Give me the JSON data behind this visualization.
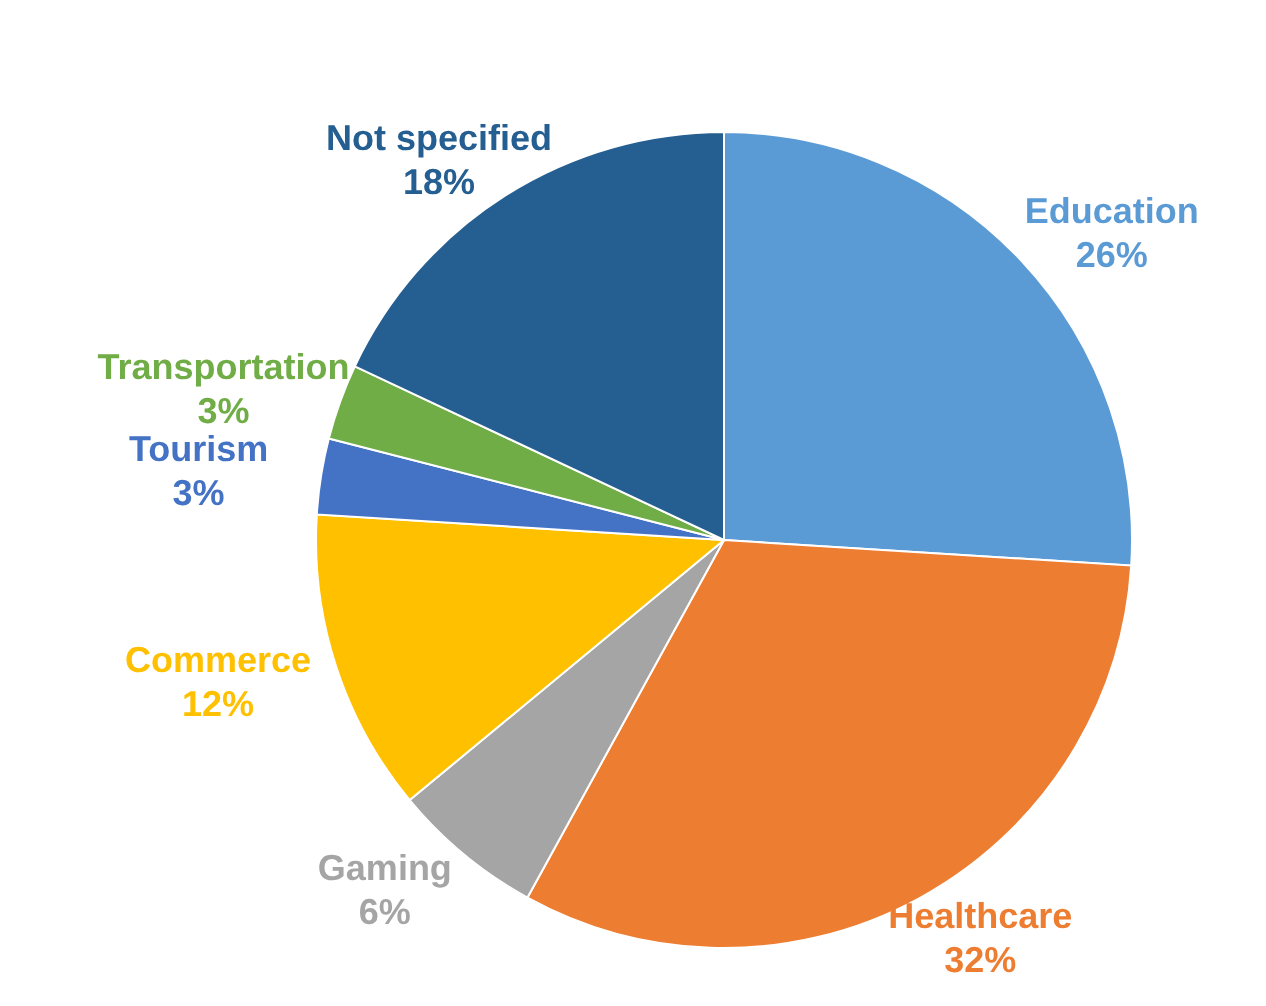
{
  "chart_data": {
    "type": "pie",
    "categories": [
      "Education",
      "Healthcare",
      "Gaming",
      "Commerce",
      "Tourism",
      "Transportation",
      "Not specified"
    ],
    "values": [
      26,
      32,
      6,
      12,
      3,
      3,
      18
    ],
    "colors": [
      "#5b9bd5",
      "#ed7d31",
      "#a5a5a5",
      "#ffc000",
      "#4472c4",
      "#70ad47",
      "#255e91"
    ],
    "value_labels": [
      "26%",
      "32%",
      "6%",
      "12%",
      "3%",
      "3%",
      "18%"
    ],
    "legend": false
  }
}
